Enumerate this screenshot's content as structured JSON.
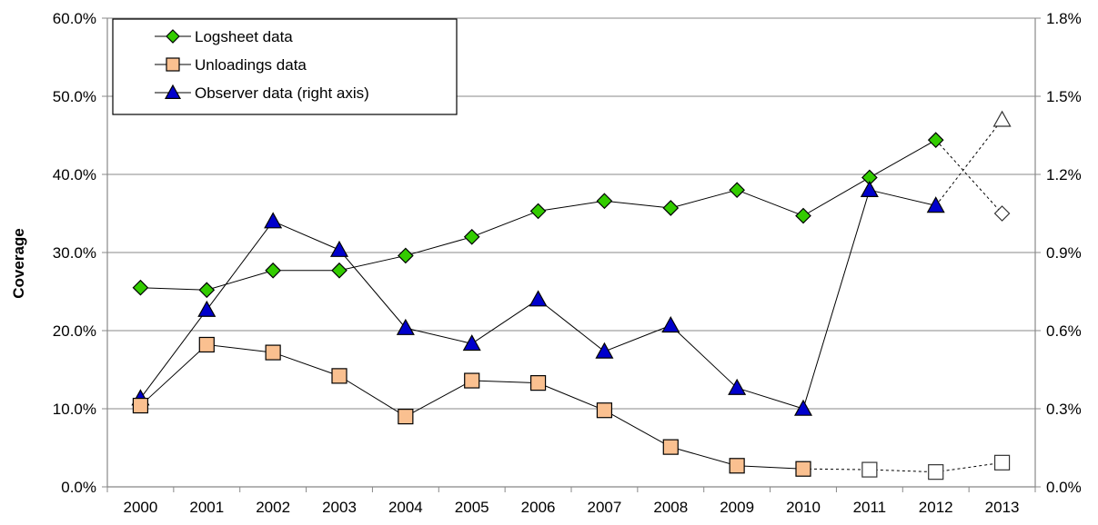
{
  "chart_data": {
    "type": "line",
    "title": "",
    "ylabel": "Coverage",
    "y2label": "",
    "categories": [
      "2000",
      "2001",
      "2002",
      "2003",
      "2004",
      "2005",
      "2006",
      "2007",
      "2008",
      "2009",
      "2010",
      "2011",
      "2012",
      "2013"
    ],
    "ylim": [
      0,
      0.6
    ],
    "y2lim": [
      0,
      0.018
    ],
    "yticks": [
      "0.0%",
      "10.0%",
      "20.0%",
      "30.0%",
      "40.0%",
      "50.0%",
      "60.0%"
    ],
    "y2ticks": [
      "0.0%",
      "0.3%",
      "0.6%",
      "0.9%",
      "1.2%",
      "1.5%",
      "1.8%"
    ],
    "grid": true,
    "legend_position": "top-left",
    "series": [
      {
        "name": "Logsheet data",
        "axis": "left",
        "marker": "diamond",
        "color": "#33cc00",
        "values": [
          0.255,
          0.252,
          0.277,
          0.277,
          0.296,
          0.32,
          0.353,
          0.366,
          0.357,
          0.38,
          0.347,
          0.396,
          0.444,
          0.35
        ],
        "provisional_from_index": 13
      },
      {
        "name": "Unloadings data",
        "axis": "left",
        "marker": "square",
        "color": "#fac090",
        "values": [
          0.104,
          0.182,
          0.172,
          0.142,
          0.09,
          0.136,
          0.133,
          0.098,
          0.051,
          0.027,
          0.023,
          0.022,
          0.019,
          0.031
        ],
        "provisional_from_index": 11
      },
      {
        "name": "Observer data (right axis)",
        "axis": "right",
        "marker": "triangle",
        "color": "#0000cc",
        "values": [
          0.0034,
          0.0068,
          0.0102,
          0.0091,
          0.0061,
          0.0055,
          0.0072,
          0.0052,
          0.0062,
          0.0038,
          0.003,
          0.0114,
          0.0108,
          0.0141
        ],
        "provisional_from_index": 13
      }
    ]
  }
}
